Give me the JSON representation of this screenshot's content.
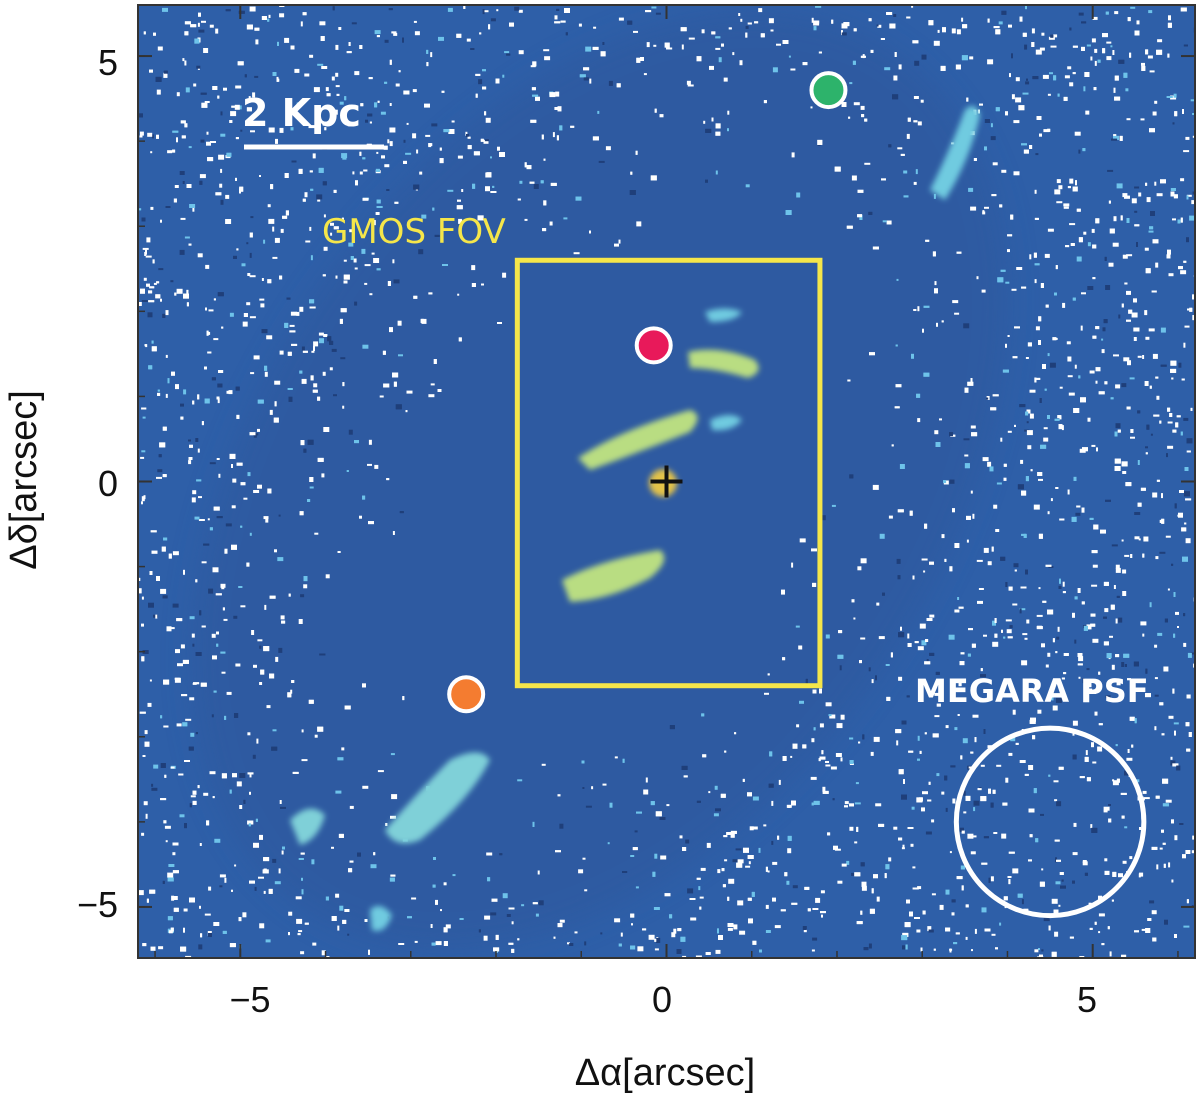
{
  "figure": {
    "x_axis": {
      "label": "Δα[arcsec]",
      "range": [
        -6.2,
        6.2
      ],
      "ticks": [
        {
          "value": -5,
          "label": "−5"
        },
        {
          "value": 0,
          "label": "0"
        },
        {
          "value": 5,
          "label": "5"
        }
      ]
    },
    "y_axis": {
      "label": "Δδ[arcsec]",
      "range": [
        -5.6,
        5.6
      ],
      "ticks": [
        {
          "value": 5,
          "label": "5"
        },
        {
          "value": 0,
          "label": "0"
        },
        {
          "value": -5,
          "label": "−5"
        }
      ]
    },
    "scale_bar": {
      "label": "2 Kpc"
    },
    "gmos": {
      "label": "GMOS FOV",
      "x_range": [
        -1.75,
        1.8
      ],
      "y_range": [
        -2.4,
        2.6
      ],
      "color": "#f5e64a"
    },
    "megara": {
      "label": "MEGARA PSF",
      "center": [
        4.5,
        -4.0
      ],
      "radius": 1.1
    },
    "nucleus": {
      "x": 0.0,
      "y": 0.0
    },
    "markers": [
      {
        "name": "green-marker",
        "x": 1.9,
        "y": 4.6,
        "color": "#2db36b"
      },
      {
        "name": "magenta-marker",
        "x": -0.15,
        "y": 1.6,
        "color": "#e8195a"
      },
      {
        "name": "orange-marker",
        "x": -2.35,
        "y": -2.5,
        "color": "#f47c30"
      }
    ],
    "colors": {
      "background_blue": "#2e5fa8",
      "emission_cyan": "#5fc6e6",
      "emission_yellow": "#c9e27a"
    }
  }
}
